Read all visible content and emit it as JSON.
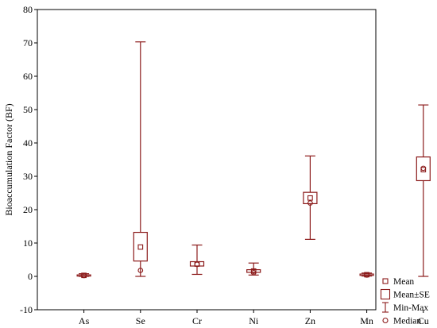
{
  "chart_data": {
    "type": "box",
    "ylabel": "Bioaccumulation Factor (BF)",
    "xlabel": "",
    "ylim": [
      -10,
      80
    ],
    "yticks": [
      -10,
      0,
      10,
      20,
      30,
      40,
      50,
      60,
      70,
      80
    ],
    "grid": false,
    "legend_position": "bottom-right",
    "color": "#8b1a1a",
    "categories": [
      "As",
      "Se",
      "Cr",
      "Ni",
      "Zn",
      "Mn",
      "Cu"
    ],
    "series": [
      {
        "category": "As",
        "mean": 0.3,
        "se_low": 0.15,
        "se_high": 0.45,
        "min": 0.0,
        "max": 0.8,
        "median": 0.25
      },
      {
        "category": "Se",
        "mean": 8.8,
        "se_low": 4.6,
        "se_high": 13.2,
        "min": 0.0,
        "max": 70.3,
        "median": 1.8
      },
      {
        "category": "Cr",
        "mean": 3.7,
        "se_low": 3.1,
        "se_high": 4.4,
        "min": 0.6,
        "max": 9.4,
        "median": 3.6
      },
      {
        "category": "Ni",
        "mean": 1.6,
        "se_low": 1.2,
        "se_high": 2.0,
        "min": 0.4,
        "max": 4.0,
        "median": 1.1
      },
      {
        "category": "Zn",
        "mean": 23.5,
        "se_low": 21.8,
        "se_high": 25.2,
        "min": 11.1,
        "max": 36.1,
        "median": 22.0
      },
      {
        "category": "Mn",
        "mean": 0.5,
        "se_low": 0.3,
        "se_high": 0.7,
        "min": 0.1,
        "max": 1.0,
        "median": 0.4
      },
      {
        "category": "Cu",
        "mean": 32.0,
        "se_low": 28.7,
        "se_high": 35.8,
        "min": 0.0,
        "max": 51.4,
        "median": 32.4
      }
    ],
    "legend": [
      {
        "key": "mean",
        "label": "Mean"
      },
      {
        "key": "se",
        "label": "Mean±SE"
      },
      {
        "key": "range",
        "label": "Min-Max"
      },
      {
        "key": "median",
        "label": "Median"
      }
    ]
  }
}
